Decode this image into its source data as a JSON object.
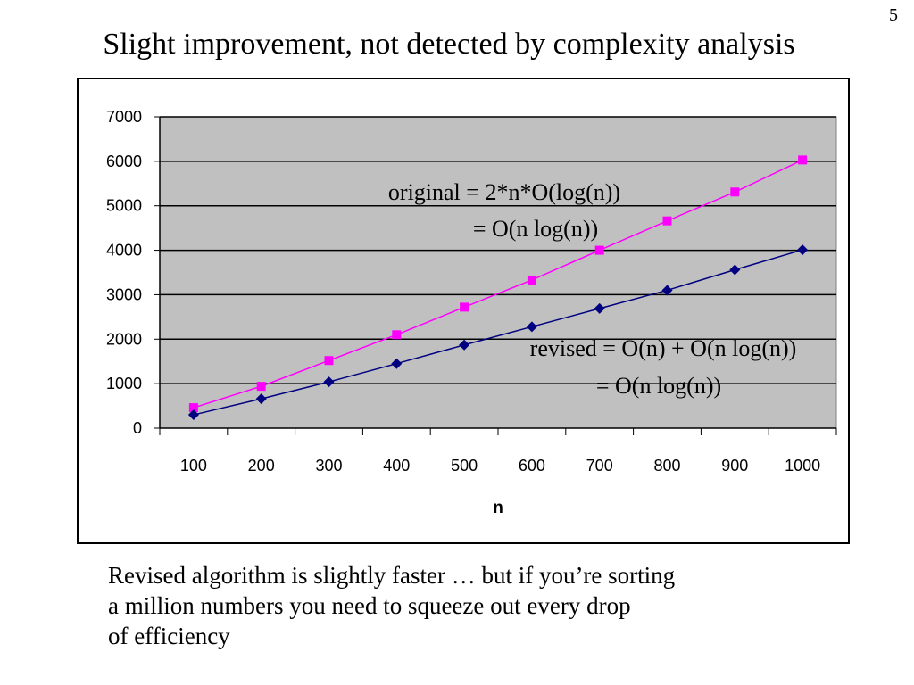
{
  "slide": {
    "number": "5",
    "title": "Slight improvement, not detected by complexity analysis",
    "body_lines": [
      "Revised algorithm is slightly faster … but if you’re sorting",
      "a million numbers you need to squeeze out every drop",
      "of efficiency"
    ]
  },
  "chart_data": {
    "type": "line",
    "categories": [
      "100",
      "200",
      "300",
      "400",
      "500",
      "600",
      "700",
      "800",
      "900",
      "1000"
    ],
    "series": [
      {
        "name": "original",
        "color": "#ff00ff",
        "marker": "square",
        "values": [
          460,
          940,
          1520,
          2100,
          2720,
          3330,
          4000,
          4660,
          5310,
          6030
        ]
      },
      {
        "name": "revised",
        "color": "#000080",
        "marker": "diamond",
        "values": [
          300,
          660,
          1040,
          1450,
          1870,
          2280,
          2690,
          3100,
          3560,
          4010
        ]
      }
    ],
    "xlabel": "n",
    "ylabel": "",
    "ylim": [
      0,
      7000
    ],
    "yticks": [
      0,
      1000,
      2000,
      3000,
      4000,
      5000,
      6000,
      7000
    ],
    "grid": "horizontal",
    "plot_background": "#c0c0c0",
    "annotations": [
      {
        "lines": [
          "original = 2*n*O(log(n))",
          "= O(n log(n))"
        ]
      },
      {
        "lines": [
          "revised = O(n) + O(n log(n))",
          "= O(n log(n))"
        ]
      }
    ]
  }
}
